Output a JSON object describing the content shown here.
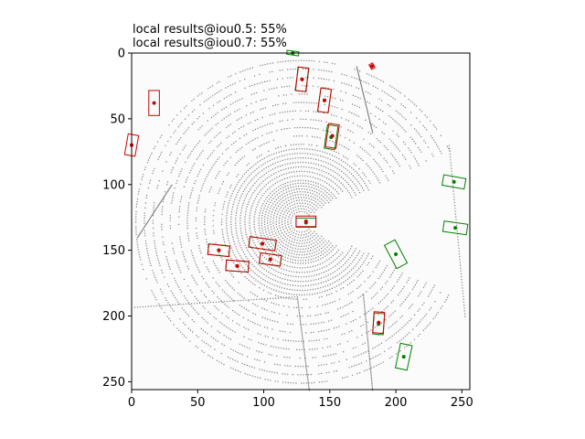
{
  "chart_data": {
    "type": "scatter",
    "title_lines": [
      "local results@iou0.5: 55%",
      "local results@iou0.7: 55%"
    ],
    "xlabel": "",
    "ylabel": "",
    "xlim": [
      0,
      256
    ],
    "ylim": [
      256,
      0
    ],
    "x_ticks": [
      0,
      50,
      100,
      150,
      200,
      250
    ],
    "y_ticks": [
      0,
      50,
      100,
      150,
      200,
      250
    ],
    "grid": false,
    "background_color": "#fbfbfb",
    "colors": {
      "points": "#808080",
      "ground_truth": "#008000",
      "prediction": "#cc0000"
    },
    "series": [
      {
        "role": "ground_truth",
        "color": "#008000",
        "boxes": [
          {
            "cx": 122,
            "cy": 0,
            "w": 9,
            "h": 3,
            "angle": 8
          },
          {
            "cx": 129,
            "cy": 20,
            "w": 8,
            "h": 18,
            "angle": 8
          },
          {
            "cx": 146,
            "cy": 36,
            "w": 8,
            "h": 18,
            "angle": 8
          },
          {
            "cx": 151,
            "cy": 64,
            "w": 8,
            "h": 18,
            "angle": 8
          },
          {
            "cx": 132,
            "cy": 129,
            "w": 15,
            "h": 7,
            "angle": 0
          },
          {
            "cx": 244,
            "cy": 98,
            "w": 17,
            "h": 8,
            "angle": 10
          },
          {
            "cx": 245,
            "cy": 133,
            "w": 18,
            "h": 8,
            "angle": 8
          },
          {
            "cx": 200,
            "cy": 153,
            "w": 9,
            "h": 20,
            "angle": -28
          },
          {
            "cx": 99,
            "cy": 145,
            "w": 20,
            "h": 8,
            "angle": 8
          },
          {
            "cx": 66,
            "cy": 150,
            "w": 16,
            "h": 8,
            "angle": 6
          },
          {
            "cx": 105,
            "cy": 157,
            "w": 16,
            "h": 8,
            "angle": 8
          },
          {
            "cx": 80,
            "cy": 162,
            "w": 17,
            "h": 8,
            "angle": 4
          },
          {
            "cx": 187,
            "cy": 206,
            "w": 8,
            "h": 16,
            "angle": 4
          },
          {
            "cx": 206,
            "cy": 231,
            "w": 9,
            "h": 19,
            "angle": 12
          }
        ]
      },
      {
        "role": "prediction",
        "color": "#cc0000",
        "boxes": [
          {
            "cx": 129,
            "cy": 20,
            "w": 8,
            "h": 18,
            "angle": 6
          },
          {
            "cx": 146,
            "cy": 36,
            "w": 8,
            "h": 18,
            "angle": 8
          },
          {
            "cx": 152,
            "cy": 63,
            "w": 8,
            "h": 18,
            "angle": 8
          },
          {
            "cx": 132,
            "cy": 128,
            "w": 15,
            "h": 8,
            "angle": 0
          },
          {
            "cx": 17,
            "cy": 38,
            "w": 8,
            "h": 19,
            "angle": 0
          },
          {
            "cx": 0,
            "cy": 70,
            "w": 8,
            "h": 16,
            "angle": 10
          },
          {
            "cx": 182,
            "cy": 10,
            "w": 3,
            "h": 4,
            "angle": -30
          },
          {
            "cx": 99,
            "cy": 145,
            "w": 20,
            "h": 8,
            "angle": 8
          },
          {
            "cx": 66,
            "cy": 150,
            "w": 16,
            "h": 8,
            "angle": 6
          },
          {
            "cx": 105,
            "cy": 157,
            "w": 16,
            "h": 8,
            "angle": 8
          },
          {
            "cx": 80,
            "cy": 162,
            "w": 17,
            "h": 8,
            "angle": 4
          },
          {
            "cx": 187,
            "cy": 205,
            "w": 8,
            "h": 16,
            "angle": 4
          }
        ]
      }
    ]
  }
}
